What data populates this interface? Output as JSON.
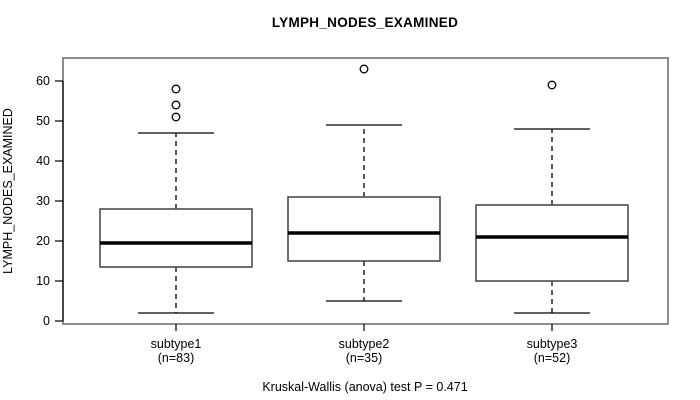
{
  "title": "LYMPH_NODES_EXAMINED",
  "ylabel": "LYMPH_NODES_EXAMINED",
  "caption": "Kruskal-Wallis (anova) test P = 0.471",
  "chart_data": {
    "type": "boxplot",
    "title": "LYMPH_NODES_EXAMINED",
    "xlabel": "",
    "ylabel": "LYMPH_NODES_EXAMINED",
    "categories": [
      "subtype1",
      "subtype2",
      "subtype3"
    ],
    "category_sublabels": [
      "(n=83)",
      "(n=35)",
      "(n=52)"
    ],
    "counts": [
      83,
      35,
      52
    ],
    "ylim": [
      0,
      65.75
    ],
    "yticks": [
      0,
      10,
      20,
      30,
      40,
      50,
      60
    ],
    "grid": false,
    "legend": "none",
    "series": [
      {
        "name": "subtype1",
        "n": 83,
        "whisker_low": 2,
        "q1": 13.5,
        "median": 19.5,
        "q3": 28,
        "whisker_high": 47,
        "outliers": [
          51,
          54,
          58
        ]
      },
      {
        "name": "subtype2",
        "n": 35,
        "whisker_low": 5,
        "q1": 15,
        "median": 22,
        "q3": 31,
        "whisker_high": 49,
        "outliers": [
          63
        ]
      },
      {
        "name": "subtype3",
        "n": 52,
        "whisker_low": 2,
        "q1": 10,
        "median": 21,
        "q3": 29,
        "whisker_high": 48,
        "outliers": [
          59
        ]
      }
    ],
    "annotation": "Kruskal-Wallis (anova) test P = 0.471",
    "colors": {
      "box_stroke": "#4d4d4d",
      "line": "#000000",
      "plot_border": "#666666",
      "background": "#ffffff"
    }
  }
}
